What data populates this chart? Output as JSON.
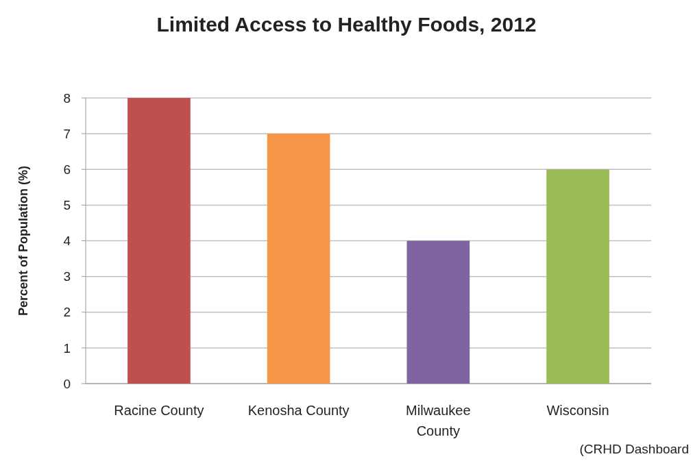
{
  "chart_data": {
    "type": "bar",
    "title": "Limited Access to Healthy Foods, 2012",
    "ylabel": "Percent of Population (%)",
    "categories": [
      "Racine County",
      "Kenosha County",
      "Milwaukee County",
      "Wisconsin"
    ],
    "values": [
      8,
      7,
      4,
      6
    ],
    "colors": [
      "#c0504d",
      "#f79646",
      "#8064a2",
      "#9bbb59"
    ],
    "ylim": [
      0,
      8
    ],
    "yticks": [
      0,
      1,
      2,
      3,
      4,
      5,
      6,
      7,
      8
    ],
    "grid": "y",
    "annotations": [
      "(CRHD Dashboard"
    ]
  }
}
